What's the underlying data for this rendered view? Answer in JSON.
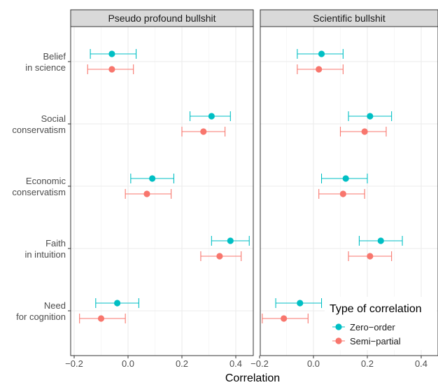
{
  "chart_data": {
    "type": "scatter",
    "xlabel": "Correlation",
    "xticks": [
      -0.2,
      0.0,
      0.2,
      0.4
    ],
    "xtick_labels": [
      "−0.2",
      "0.0",
      "0.2",
      "0.4"
    ],
    "categories": [
      {
        "line1": "Belief",
        "line2": "in science"
      },
      {
        "line1": "Social",
        "line2": "conservatism"
      },
      {
        "line1": "Economic",
        "line2": "conservatism"
      },
      {
        "line1": "Faith",
        "line2": "in intuition"
      },
      {
        "line1": "Need",
        "line2": "for cognition"
      }
    ],
    "legend": {
      "title": "Type of correlation",
      "position": "bottom-right",
      "items": [
        {
          "label": "Zero−order",
          "color": "#00BFC4"
        },
        {
          "label": "Semi−partial",
          "color": "#F8766D"
        }
      ]
    },
    "grid": true,
    "panels": [
      {
        "title": "Pseudo profound bullshit",
        "series": [
          {
            "color": "#00BFC4",
            "points": [
              {
                "est": -0.06,
                "lo": -0.14,
                "hi": 0.03
              },
              {
                "est": 0.31,
                "lo": 0.23,
                "hi": 0.38
              },
              {
                "est": 0.09,
                "lo": 0.01,
                "hi": 0.17
              },
              {
                "est": 0.38,
                "lo": 0.31,
                "hi": 0.45
              },
              {
                "est": -0.04,
                "lo": -0.12,
                "hi": 0.04
              }
            ]
          },
          {
            "color": "#F8766D",
            "points": [
              {
                "est": -0.06,
                "lo": -0.15,
                "hi": 0.02
              },
              {
                "est": 0.28,
                "lo": 0.2,
                "hi": 0.36
              },
              {
                "est": 0.07,
                "lo": -0.01,
                "hi": 0.16
              },
              {
                "est": 0.34,
                "lo": 0.27,
                "hi": 0.42
              },
              {
                "est": -0.1,
                "lo": -0.18,
                "hi": -0.01
              }
            ]
          }
        ]
      },
      {
        "title": "Scientific bullshit",
        "series": [
          {
            "color": "#00BFC4",
            "points": [
              {
                "est": 0.03,
                "lo": -0.06,
                "hi": 0.11
              },
              {
                "est": 0.21,
                "lo": 0.13,
                "hi": 0.29
              },
              {
                "est": 0.12,
                "lo": 0.03,
                "hi": 0.2
              },
              {
                "est": 0.25,
                "lo": 0.17,
                "hi": 0.33
              },
              {
                "est": -0.05,
                "lo": -0.14,
                "hi": 0.03
              }
            ]
          },
          {
            "color": "#F8766D",
            "points": [
              {
                "est": 0.02,
                "lo": -0.06,
                "hi": 0.11
              },
              {
                "est": 0.19,
                "lo": 0.1,
                "hi": 0.27
              },
              {
                "est": 0.11,
                "lo": 0.02,
                "hi": 0.19
              },
              {
                "est": 0.21,
                "lo": 0.13,
                "hi": 0.29
              },
              {
                "est": -0.11,
                "lo": -0.19,
                "hi": -0.02
              }
            ]
          }
        ]
      }
    ]
  }
}
